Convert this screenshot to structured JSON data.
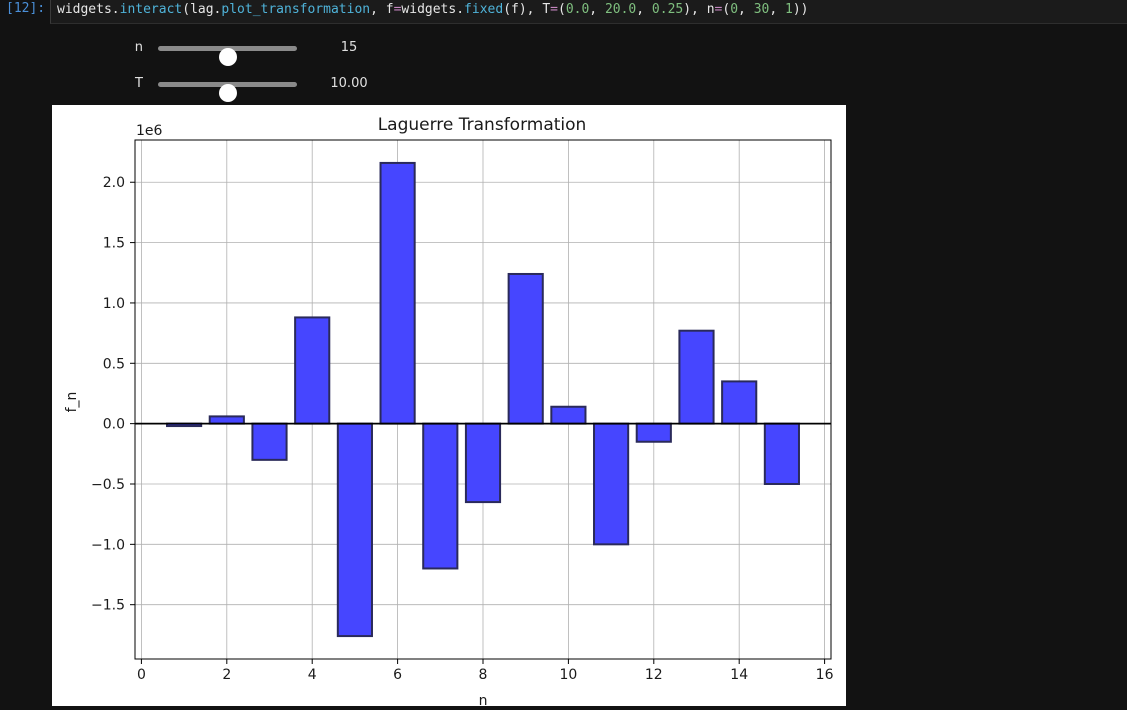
{
  "cell": {
    "prompt": "[12]:",
    "code_tokens": [
      {
        "t": "widgets",
        "c": "tok-id"
      },
      {
        "t": ".",
        "c": "tok-id"
      },
      {
        "t": "interact",
        "c": "tok-fn"
      },
      {
        "t": "(lag.",
        "c": "tok-id"
      },
      {
        "t": "plot_transformation",
        "c": "tok-fn"
      },
      {
        "t": ", f",
        "c": "tok-id"
      },
      {
        "t": "=",
        "c": "tok-kw"
      },
      {
        "t": "widgets.",
        "c": "tok-id"
      },
      {
        "t": "fixed",
        "c": "tok-fn"
      },
      {
        "t": "(f), T",
        "c": "tok-id"
      },
      {
        "t": "=",
        "c": "tok-kw"
      },
      {
        "t": "(",
        "c": "tok-id"
      },
      {
        "t": "0.0",
        "c": "tok-num"
      },
      {
        "t": ", ",
        "c": "tok-id"
      },
      {
        "t": "20.0",
        "c": "tok-num"
      },
      {
        "t": ", ",
        "c": "tok-id"
      },
      {
        "t": "0.25",
        "c": "tok-num"
      },
      {
        "t": "), n",
        "c": "tok-id"
      },
      {
        "t": "=",
        "c": "tok-kw"
      },
      {
        "t": "(",
        "c": "tok-id"
      },
      {
        "t": "0",
        "c": "tok-num"
      },
      {
        "t": ", ",
        "c": "tok-id"
      },
      {
        "t": "30",
        "c": "tok-num"
      },
      {
        "t": ", ",
        "c": "tok-id"
      },
      {
        "t": "1",
        "c": "tok-num"
      },
      {
        "t": "))",
        "c": "tok-id"
      }
    ]
  },
  "widgets": {
    "n": {
      "label": "n",
      "value_text": "15",
      "value": 15,
      "min": 0,
      "max": 30
    },
    "T": {
      "label": "T",
      "value_text": "10.00",
      "value": 10.0,
      "min": 0.0,
      "max": 20.0
    }
  },
  "chart_data": {
    "type": "bar",
    "title": "Laguerre Transformation",
    "xlabel": "n",
    "ylabel": "f_n",
    "offset_label": "1e6",
    "scale": 1000000,
    "x": [
      1,
      2,
      3,
      4,
      5,
      6,
      7,
      8,
      9,
      10,
      11,
      12,
      13,
      14,
      15
    ],
    "values": [
      -0.02,
      0.06,
      -0.3,
      0.88,
      -1.76,
      2.16,
      -1.2,
      -0.65,
      1.24,
      0.14,
      -1.0,
      -0.15,
      0.77,
      0.35,
      -0.5
    ],
    "xlim": [
      -0.15,
      16.15
    ],
    "ylim": [
      -1.95,
      2.35
    ],
    "xticks": [
      0,
      2,
      4,
      6,
      8,
      10,
      12,
      14,
      16
    ],
    "xtick_labels": [
      "0",
      "2",
      "4",
      "6",
      "8",
      "10",
      "12",
      "14",
      "16"
    ],
    "yticks": [
      -1.5,
      -1.0,
      -0.5,
      0.0,
      0.5,
      1.0,
      1.5,
      2.0
    ],
    "ytick_labels": [
      "−1.5",
      "−1.0",
      "−0.5",
      "0.0",
      "0.5",
      "1.0",
      "1.5",
      "2.0"
    ],
    "bar_color": "#4646ff",
    "edge_color": "#2a2a5a",
    "grid": true,
    "zero_line": true
  }
}
